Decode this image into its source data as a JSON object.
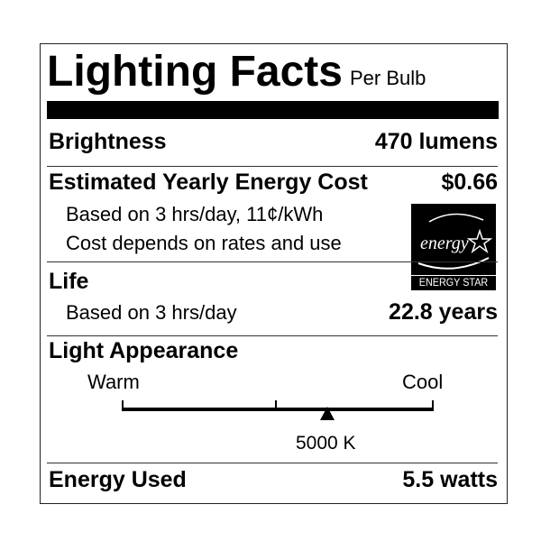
{
  "title": "Lighting Facts",
  "subtitle": "Per Bulb",
  "brightness": {
    "label": "Brightness",
    "value": "470 lumens"
  },
  "cost": {
    "label": "Estimated Yearly Energy Cost",
    "value": "$0.66",
    "note1": "Based on 3 hrs/day, 11¢/kWh",
    "note2": "Cost depends on rates and use"
  },
  "life": {
    "label": "Life",
    "note": "Based on 3 hrs/day",
    "value": "22.8 years"
  },
  "appearance": {
    "label": "Light Appearance",
    "warm": "Warm",
    "cool": "Cool",
    "value": "5000 K",
    "position_fraction": 0.66
  },
  "energy_used": {
    "label": "Energy Used",
    "value": "5.5 watts"
  },
  "logo": {
    "script": "energy",
    "caption": "ENERGY STAR"
  }
}
